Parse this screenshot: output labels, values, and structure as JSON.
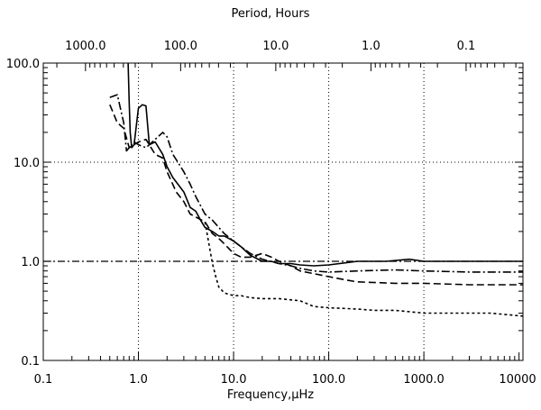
{
  "chart_data": {
    "type": "line",
    "xlabel": "Frequency,μHz",
    "x2label": "Period, Hours",
    "ylabel": "",
    "xscale": "log",
    "yscale": "log",
    "xlim": [
      0.1,
      11000
    ],
    "ylim": [
      0.1,
      100
    ],
    "grid": "dotted at decades",
    "reference_line_y": 1.0,
    "xticks": [
      "0.1",
      "1.0",
      "10.0",
      "100.0",
      "1000.0",
      "10000"
    ],
    "yticks": [
      "0.1",
      "1.0",
      "10.0",
      "100.0"
    ],
    "x2ticks": [
      "1000.0",
      "100.0",
      "10.0",
      "1.0",
      "0.1"
    ],
    "x2tick_freqs": [
      0.2778,
      2.778,
      27.78,
      277.8,
      2778
    ],
    "series": [
      {
        "style": "solid",
        "x": [
          0.78,
          0.8,
          0.82,
          0.85,
          0.9,
          1.0,
          1.1,
          1.2,
          1.3,
          1.5,
          1.8,
          2.0,
          2.3,
          2.6,
          3.0,
          3.5,
          4.0,
          4.5,
          5.0,
          6.0,
          7.0,
          8.0,
          10.0,
          12.0,
          15.0,
          20.0,
          25.0,
          30.0,
          40.0,
          50.0,
          70.0,
          100.0,
          200.0,
          400.0,
          700.0,
          1000.0,
          2000.0,
          5000.0,
          11000.0
        ],
        "y": [
          100.0,
          40.0,
          20.0,
          14.0,
          15.0,
          35.0,
          38.0,
          37.0,
          15.0,
          16.0,
          12.0,
          9.0,
          7.0,
          6.0,
          5.0,
          3.5,
          3.2,
          2.6,
          2.2,
          2.0,
          1.8,
          1.8,
          1.6,
          1.4,
          1.15,
          1.0,
          1.0,
          0.95,
          0.95,
          0.92,
          0.9,
          0.92,
          1.0,
          1.0,
          1.05,
          1.0,
          1.0,
          1.0,
          1.0
        ]
      },
      {
        "style": "dash-dot",
        "x": [
          0.5,
          0.6,
          0.7,
          0.75,
          0.8,
          0.85,
          0.9,
          1.0,
          1.2,
          1.5,
          1.8,
          2.0,
          2.3,
          2.6,
          3.0,
          3.5,
          4.0,
          5.0,
          6.0,
          8.0,
          10.0,
          12.0,
          15.0,
          20.0,
          30.0,
          40.0,
          50.0,
          70.0,
          100.0,
          200.0,
          500.0,
          1000.0,
          3000.0,
          11000.0
        ],
        "y": [
          45.0,
          48.0,
          25.0,
          13.0,
          14.0,
          15.0,
          16.0,
          15.0,
          14.0,
          17.0,
          20.0,
          18.0,
          12.0,
          10.0,
          8.0,
          6.0,
          4.5,
          3.0,
          2.6,
          1.9,
          1.6,
          1.4,
          1.2,
          1.05,
          0.95,
          0.9,
          0.85,
          0.8,
          0.78,
          0.8,
          0.82,
          0.8,
          0.78,
          0.78
        ]
      },
      {
        "style": "dashed",
        "x": [
          0.5,
          0.6,
          0.7,
          0.8,
          0.9,
          1.0,
          1.2,
          1.5,
          1.8,
          2.0,
          2.5,
          3.0,
          3.5,
          4.0,
          5.0,
          6.0,
          7.0,
          8.0,
          10.0,
          12.0,
          15.0,
          20.0,
          25.0,
          30.0,
          40.0,
          50.0,
          70.0,
          100.0,
          150.0,
          200.0,
          500.0,
          1000.0,
          3000.0,
          11000.0
        ],
        "y": [
          38.0,
          25.0,
          22.0,
          14.0,
          15.0,
          16.0,
          17.0,
          12.0,
          11.0,
          8.0,
          5.0,
          4.0,
          3.0,
          2.8,
          2.5,
          1.9,
          1.7,
          1.5,
          1.2,
          1.1,
          1.1,
          1.2,
          1.1,
          1.0,
          0.9,
          0.8,
          0.75,
          0.7,
          0.65,
          0.62,
          0.6,
          0.6,
          0.58,
          0.58
        ]
      },
      {
        "style": "dotted",
        "x": [
          5.0,
          5.5,
          6.0,
          6.5,
          7.0,
          8.0,
          10.0,
          12.0,
          15.0,
          20.0,
          30.0,
          50.0,
          70.0,
          100.0,
          200.0,
          300.0,
          500.0,
          1000.0,
          2000.0,
          5000.0,
          11000.0
        ],
        "y": [
          2.5,
          1.5,
          0.95,
          0.7,
          0.55,
          0.48,
          0.45,
          0.45,
          0.43,
          0.42,
          0.42,
          0.4,
          0.35,
          0.34,
          0.33,
          0.32,
          0.32,
          0.3,
          0.3,
          0.3,
          0.28
        ]
      }
    ]
  }
}
